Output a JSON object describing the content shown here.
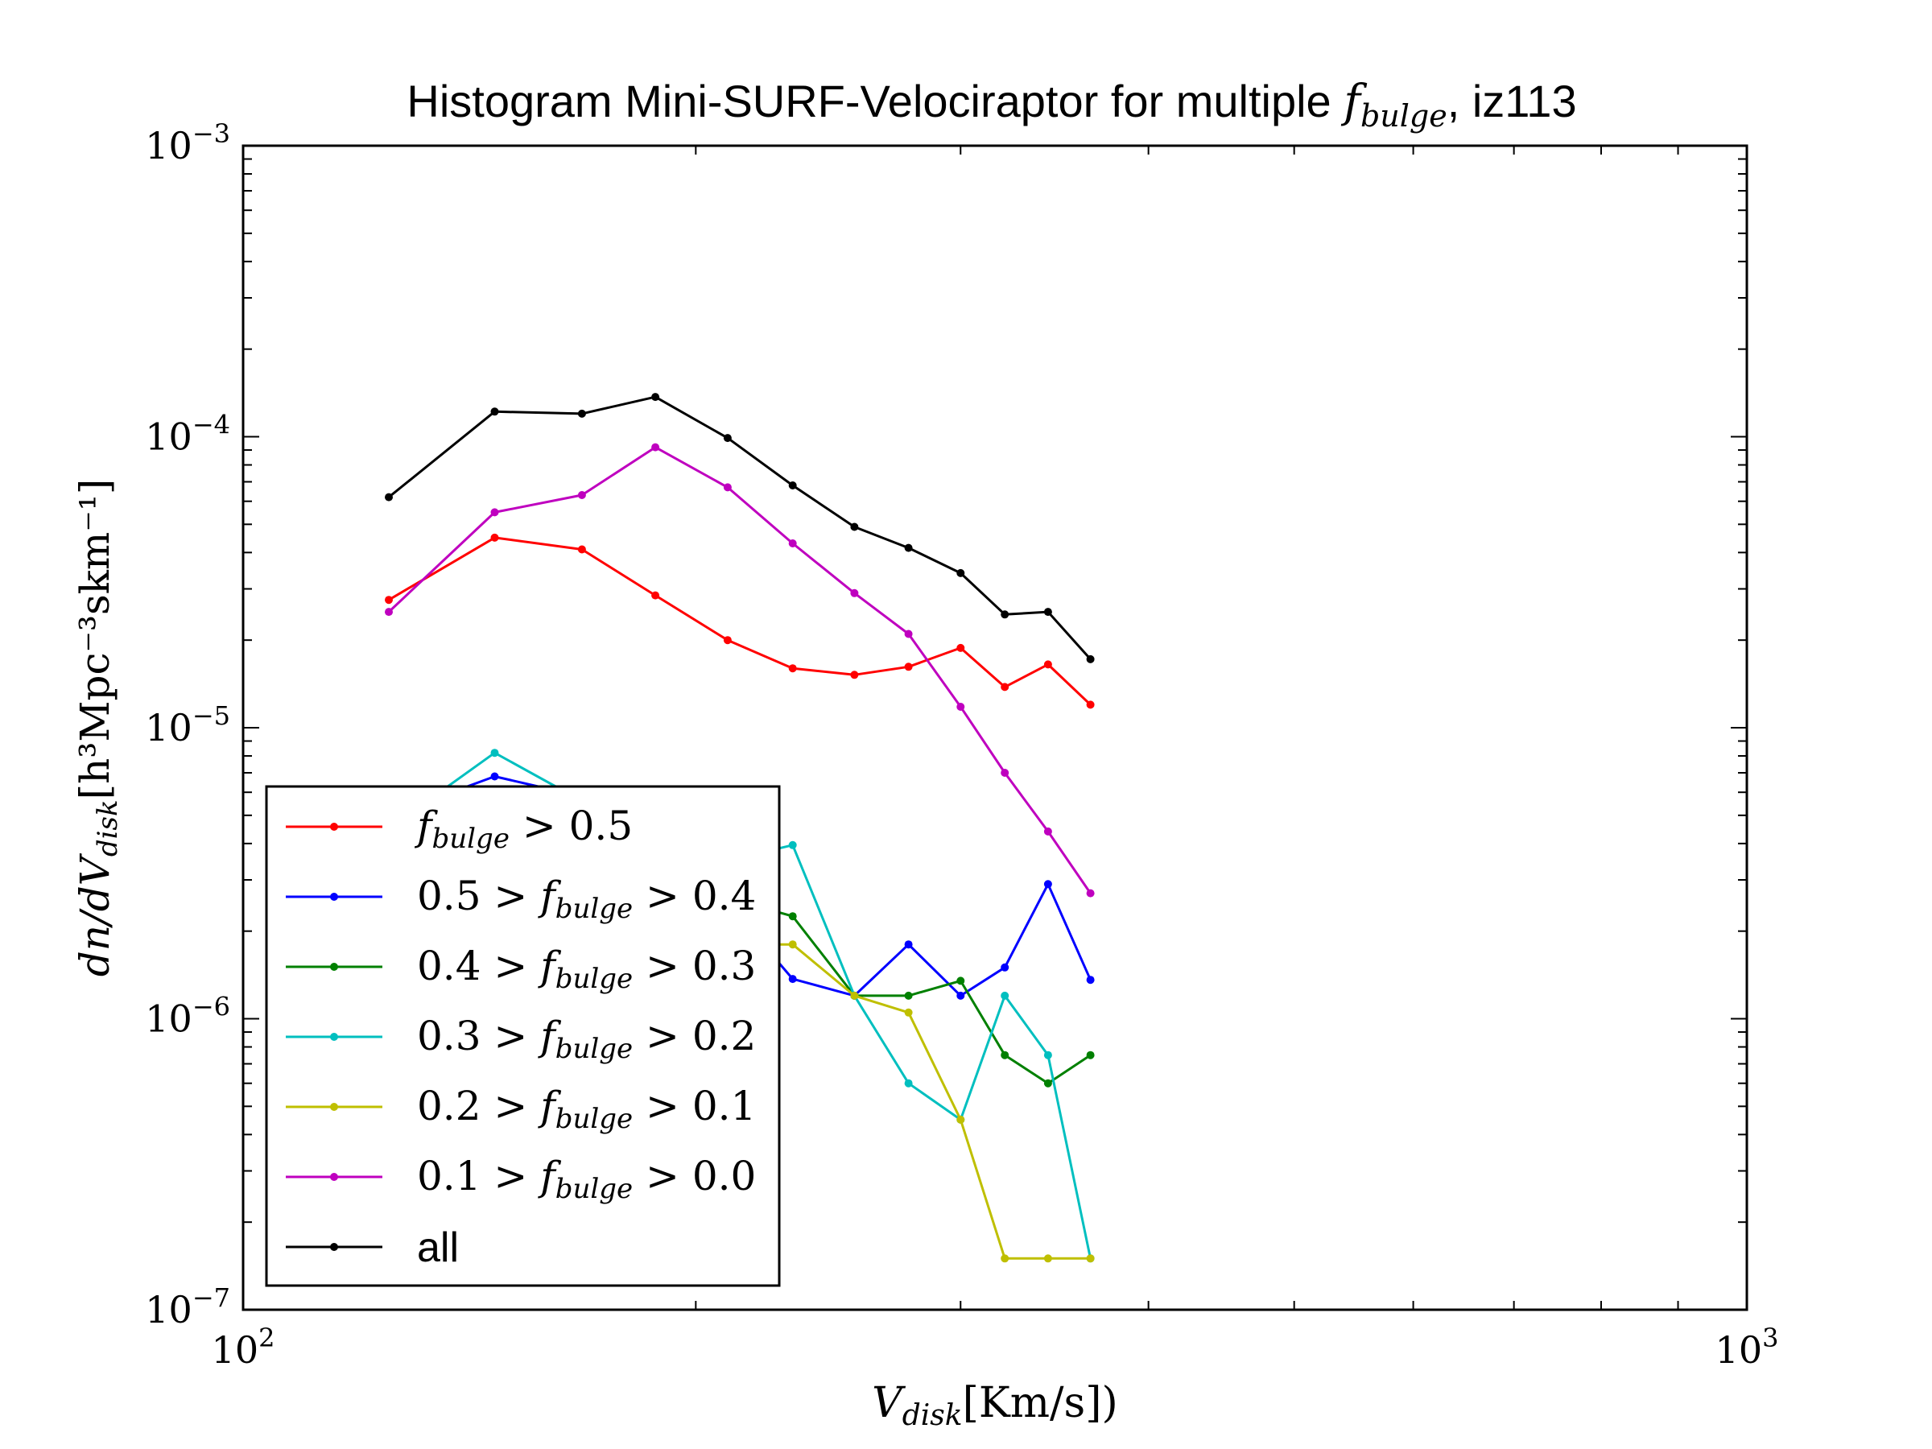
{
  "chart_data": {
    "type": "line",
    "title": {
      "prefix": "Histogram Mini-SURF-Velociraptor for multiple ",
      "symbol_main": "f",
      "symbol_sub": "bulge",
      "suffix": ", iz113"
    },
    "xlabel": {
      "main": "V",
      "sub": "disk",
      "rest": "[Km/s])"
    },
    "ylabel": {
      "main": "dn/dV",
      "sub": "disk",
      "rest": "[h³Mpc⁻³skm⁻¹]"
    },
    "x_scale": "log",
    "y_scale": "log",
    "xlim": [
      100,
      1000
    ],
    "ylim": [
      1e-07,
      0.001
    ],
    "x_ticks": [
      {
        "value": 100,
        "base": "10",
        "exp": "2"
      },
      {
        "value": 1000,
        "base": "10",
        "exp": "3"
      }
    ],
    "y_ticks": [
      {
        "value": 1e-07,
        "base": "10",
        "exp": "−7"
      },
      {
        "value": 1e-06,
        "base": "10",
        "exp": "−6"
      },
      {
        "value": 1e-05,
        "base": "10",
        "exp": "−5"
      },
      {
        "value": 0.0001,
        "base": "10",
        "exp": "−4"
      },
      {
        "value": 0.001,
        "base": "10",
        "exp": "−3"
      }
    ],
    "grid": false,
    "legend_position": "lower-left",
    "x": [
      125.0,
      147.0,
      168.0,
      188.0,
      210.0,
      232.0,
      255.0,
      277.0,
      300.0,
      321.0,
      343.0,
      366.0
    ],
    "series": [
      {
        "name": "f_bulge > 0.5",
        "color": "#ff0000",
        "legend": {
          "pre": "",
          "post": " > 0.5"
        },
        "values": [
          2.75e-05,
          4.5e-05,
          4.1e-05,
          2.85e-05,
          2e-05,
          1.6e-05,
          1.52e-05,
          1.62e-05,
          1.88e-05,
          1.38e-05,
          1.65e-05,
          1.2e-05
        ]
      },
      {
        "name": "0.5 > f_bulge > 0.4",
        "color": "#0000ff",
        "legend": {
          "pre": "0.5 > ",
          "post": " > 0.4"
        },
        "values": [
          5e-06,
          6.8e-06,
          5.8e-06,
          4e-06,
          2.5e-06,
          1.37e-06,
          1.2e-06,
          1.8e-06,
          1.2e-06,
          1.5e-06,
          2.9e-06,
          1.36e-06
        ]
      },
      {
        "name": "0.4 > f_bulge > 0.3",
        "color": "#008000",
        "legend": {
          "pre": "0.4 > ",
          "post": " > 0.3"
        },
        "values": [
          3.5e-06,
          5e-06,
          4.5e-06,
          3.5e-06,
          2.6e-06,
          2.25e-06,
          1.2e-06,
          1.2e-06,
          1.35e-06,
          7.5e-07,
          6e-07,
          7.5e-07
        ]
      },
      {
        "name": "0.3 > f_bulge > 0.2",
        "color": "#00bfbf",
        "legend": {
          "pre": "0.3 > ",
          "post": " > 0.2"
        },
        "values": [
          4.5e-06,
          8.2e-06,
          5.6e-06,
          4e-06,
          3.5e-06,
          3.95e-06,
          1.2e-06,
          6e-07,
          4.5e-07,
          1.2e-06,
          7.5e-07,
          1.5e-07
        ]
      },
      {
        "name": "0.2 > f_bulge > 0.1",
        "color": "#bfbf00",
        "legend": {
          "pre": "0.2 > ",
          "post": " > 0.1"
        },
        "values": [
          2.5e-06,
          3.5e-06,
          3e-06,
          2.2e-06,
          1.8e-06,
          1.8e-06,
          1.2e-06,
          1.05e-06,
          4.5e-07,
          1.5e-07,
          1.5e-07,
          1.5e-07
        ]
      },
      {
        "name": "0.1 > f_bulge > 0.0",
        "color": "#bf00bf",
        "legend": {
          "pre": "0.1 > ",
          "post": " > 0.0"
        },
        "values": [
          2.5e-05,
          5.5e-05,
          6.3e-05,
          9.2e-05,
          6.7e-05,
          4.3e-05,
          2.9e-05,
          2.1e-05,
          1.18e-05,
          7e-06,
          4.4e-06,
          2.7e-06
        ]
      },
      {
        "name": "all",
        "color": "#000000",
        "legend": {
          "plain": "all"
        },
        "values": [
          6.2e-05,
          0.000122,
          0.00012,
          0.000137,
          9.9e-05,
          6.8e-05,
          4.9e-05,
          4.15e-05,
          3.4e-05,
          2.45e-05,
          2.5e-05,
          1.72e-05
        ]
      }
    ]
  }
}
